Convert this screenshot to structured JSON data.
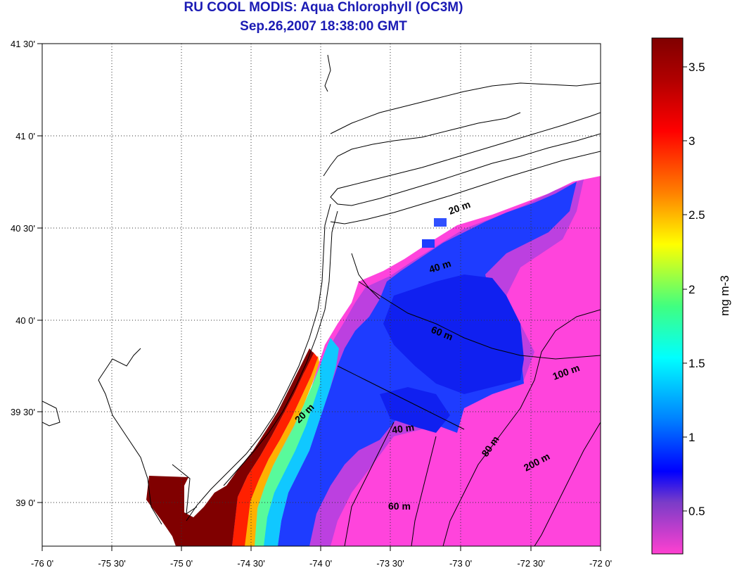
{
  "title_line1": "RU COOL MODIS: Aqua Chlorophyll (OC3M)",
  "title_line2": "Sep.26,2007 18:38:00 GMT",
  "axes": {
    "lon_ticks": [
      "-76 0'",
      "-75 30'",
      "-75 0'",
      "-74 30'",
      "-74 0'",
      "-73 30'",
      "-73 0'",
      "-72 30'",
      "-72 0'"
    ],
    "lat_ticks": [
      "41 30'",
      "41 0'",
      "40 30'",
      "40 0'",
      "39 30'",
      "39 0'"
    ]
  },
  "contour_labels": [
    {
      "text": "20 m"
    },
    {
      "text": "40 m"
    },
    {
      "text": "60 m"
    },
    {
      "text": "100 m"
    },
    {
      "text": "20 m"
    },
    {
      "text": "40 m"
    },
    {
      "text": "80 m"
    },
    {
      "text": "200 m"
    },
    {
      "text": "60 m"
    }
  ],
  "colorbar": {
    "unit": "mg m-3",
    "ticks": [
      "3.5",
      "3",
      "2.5",
      "2",
      "1.5",
      "1",
      "0.5"
    ],
    "colors": [
      "#800000",
      "#ff0000",
      "#ff8000",
      "#ffff00",
      "#00ff80",
      "#00ffff",
      "#0080ff",
      "#0000ff",
      "#8040c0",
      "#ff40c0"
    ]
  },
  "colors": {
    "title": "#1b1bb4",
    "ocean_low": "#ff40d8",
    "mid_blue": "#1e3cff",
    "high": "#800000"
  }
}
